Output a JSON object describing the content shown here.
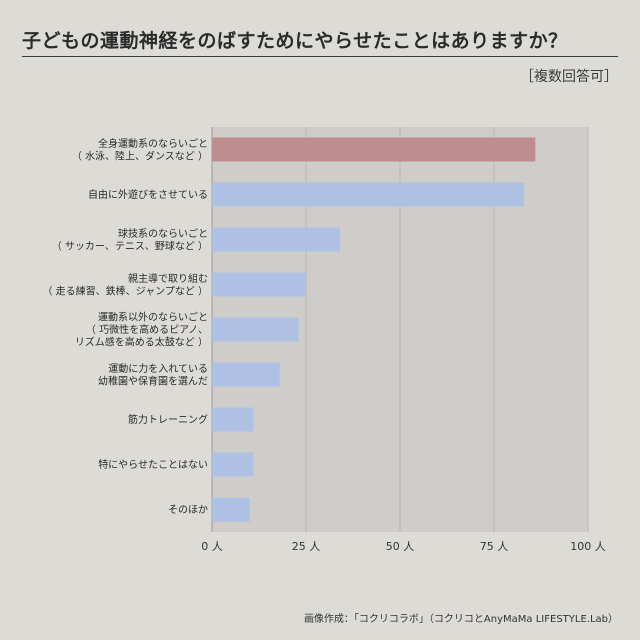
{
  "title": "子どもの運動神経をのばすためにやらせたことはありますか？",
  "note": "［複数回答可］",
  "credit": "画像作成：「コクリコラボ」（コクリコとAnyMaMa LIFESTYLE.Lab）",
  "colors": {
    "highlight": "#bf8d8f",
    "bar": "#aec1e2",
    "plot_bg": "#cecdc9",
    "grid": "#b8b7b2"
  },
  "chart_data": {
    "type": "bar",
    "orientation": "horizontal",
    "unit": "人",
    "xlim": [
      0,
      100
    ],
    "ticks": [
      {
        "value": 0,
        "label": "0 人"
      },
      {
        "value": 25,
        "label": "25 人"
      },
      {
        "value": 50,
        "label": "50 人"
      },
      {
        "value": 75,
        "label": "75 人"
      },
      {
        "value": 100,
        "label": "100 人"
      }
    ],
    "grid": true,
    "categories": [
      {
        "lines": [
          "全身運動系のならいごと",
          "（ 水泳、陸上、ダンスなど ）"
        ],
        "value": 86,
        "highlight": true
      },
      {
        "lines": [
          "自由に外遊びをさせている"
        ],
        "value": 83,
        "highlight": false
      },
      {
        "lines": [
          "球技系のならいごと",
          "（ サッカー、テニス、野球など ）"
        ],
        "value": 34,
        "highlight": false
      },
      {
        "lines": [
          "親主導で取り組む",
          "（ 走る練習、鉄棒、ジャンプなど ）"
        ],
        "value": 25,
        "highlight": false
      },
      {
        "lines": [
          "運動系以外のならいごと",
          "（ 巧微性を高めるピアノ、",
          "リズム感を高める太鼓など ）"
        ],
        "value": 23,
        "highlight": false
      },
      {
        "lines": [
          "運動に力を入れている",
          "幼稚園や保育園を選んだ"
        ],
        "value": 18,
        "highlight": false
      },
      {
        "lines": [
          "筋力トレーニング"
        ],
        "value": 11,
        "highlight": false
      },
      {
        "lines": [
          "特にやらせたことはない"
        ],
        "value": 11,
        "highlight": false
      },
      {
        "lines": [
          "そのほか"
        ],
        "value": 10,
        "highlight": false
      }
    ]
  }
}
